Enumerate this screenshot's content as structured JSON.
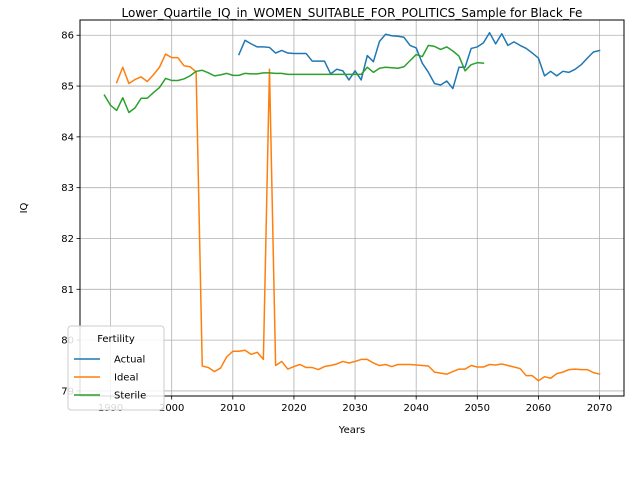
{
  "chart_data": {
    "type": "line",
    "title": "Lower_Quartile_IQ_in_WOMEN_SUITABLE_FOR_POLITICS_Sample for Black_Fe",
    "xlabel": "Years",
    "ylabel": "IQ",
    "xlim": [
      1985,
      2074
    ],
    "ylim": [
      78.9,
      86.3
    ],
    "xticks": [
      1990,
      2000,
      2010,
      2020,
      2030,
      2040,
      2050,
      2060,
      2070
    ],
    "yticks": [
      79,
      80,
      81,
      82,
      83,
      84,
      85,
      86
    ],
    "grid": true,
    "legend": {
      "title": "Fertility",
      "placement": "lower-left"
    },
    "series": [
      {
        "name": "Actual",
        "color": "#1f77b4",
        "x": [
          2011,
          2012,
          2013,
          2014,
          2015,
          2016,
          2017,
          2018,
          2019,
          2020,
          2021,
          2022,
          2023,
          2024,
          2025,
          2026,
          2027,
          2028,
          2029,
          2030,
          2031,
          2032,
          2033,
          2034,
          2035,
          2036,
          2037,
          2038,
          2039,
          2040,
          2041,
          2042,
          2043,
          2044,
          2045,
          2046,
          2047,
          2048,
          2049,
          2050,
          2051,
          2052,
          2053,
          2054,
          2055,
          2056,
          2057,
          2058,
          2059,
          2060,
          2061,
          2062,
          2063,
          2064,
          2065,
          2066,
          2067,
          2068,
          2069,
          2070
        ],
        "y": [
          85.62,
          85.9,
          85.83,
          85.77,
          85.77,
          85.76,
          85.65,
          85.7,
          85.65,
          85.64,
          85.64,
          85.64,
          85.49,
          85.49,
          85.49,
          85.24,
          85.33,
          85.3,
          85.12,
          85.3,
          85.12,
          85.6,
          85.48,
          85.88,
          86.02,
          85.99,
          85.98,
          85.96,
          85.8,
          85.75,
          85.45,
          85.27,
          85.05,
          85.02,
          85.1,
          84.95,
          85.37,
          85.37,
          85.74,
          85.77,
          85.85,
          86.05,
          85.83,
          86.03,
          85.8,
          85.87,
          85.8,
          85.74,
          85.65,
          85.55,
          85.2,
          85.29,
          85.2,
          85.29,
          85.27,
          85.33,
          85.42,
          85.55,
          85.67,
          85.7
        ]
      },
      {
        "name": "Ideal",
        "color": "#ff7f0e",
        "x": [
          1991,
          1992,
          1993,
          1994,
          1995,
          1996,
          1997,
          1998,
          1999,
          2000,
          2001,
          2002,
          2003,
          2004,
          2005,
          2006,
          2007,
          2008,
          2009,
          2010,
          2011,
          2012,
          2013,
          2014,
          2015,
          2016,
          2017,
          2018,
          2019,
          2020,
          2021,
          2022,
          2023,
          2024,
          2025,
          2026,
          2027,
          2028,
          2029,
          2030,
          2031,
          2032,
          2033,
          2034,
          2035,
          2036,
          2037,
          2038,
          2039,
          2040,
          2041,
          2042,
          2043,
          2044,
          2045,
          2046,
          2047,
          2048,
          2049,
          2050,
          2051,
          2052,
          2053,
          2054,
          2055,
          2056,
          2057,
          2058,
          2059,
          2060,
          2061,
          2062,
          2063,
          2064,
          2065,
          2066,
          2067,
          2068,
          2069,
          2070
        ],
        "y": [
          85.07,
          85.37,
          85.05,
          85.13,
          85.18,
          85.09,
          85.22,
          85.37,
          85.63,
          85.56,
          85.56,
          85.4,
          85.38,
          85.28,
          79.49,
          79.46,
          79.38,
          79.45,
          79.67,
          79.78,
          79.78,
          79.8,
          79.72,
          79.76,
          79.62,
          85.33,
          79.5,
          79.58,
          79.43,
          79.48,
          79.52,
          79.46,
          79.46,
          79.42,
          79.48,
          79.5,
          79.53,
          79.58,
          79.55,
          79.58,
          79.62,
          79.62,
          79.55,
          79.5,
          79.52,
          79.48,
          79.52,
          79.52,
          79.52,
          79.51,
          79.5,
          79.49,
          79.37,
          79.35,
          79.33,
          79.38,
          79.43,
          79.43,
          79.5,
          79.47,
          79.47,
          79.52,
          79.51,
          79.53,
          79.5,
          79.47,
          79.44,
          79.3,
          79.3,
          79.2,
          79.28,
          79.25,
          79.34,
          79.37,
          79.42,
          79.43,
          79.42,
          79.42,
          79.36,
          79.33
        ]
      },
      {
        "name": "Sterile",
        "color": "#2ca02c",
        "x": [
          1989,
          1990,
          1991,
          1992,
          1993,
          1994,
          1995,
          1996,
          1997,
          1998,
          1999,
          2000,
          2001,
          2002,
          2003,
          2004,
          2005,
          2006,
          2007,
          2008,
          2009,
          2010,
          2011,
          2012,
          2013,
          2014,
          2015,
          2016,
          2017,
          2018,
          2019,
          2020,
          2021,
          2022,
          2023,
          2024,
          2025,
          2026,
          2027,
          2028,
          2029,
          2030,
          2031,
          2032,
          2033,
          2034,
          2035,
          2036,
          2037,
          2038,
          2039,
          2040,
          2041,
          2042,
          2043,
          2044,
          2045,
          2046,
          2047,
          2048,
          2049,
          2050,
          2051
        ],
        "y": [
          84.82,
          84.62,
          84.52,
          84.77,
          84.48,
          84.57,
          84.76,
          84.76,
          84.87,
          84.97,
          85.15,
          85.11,
          85.11,
          85.14,
          85.2,
          85.29,
          85.31,
          85.26,
          85.2,
          85.22,
          85.25,
          85.21,
          85.21,
          85.25,
          85.24,
          85.24,
          85.26,
          85.26,
          85.25,
          85.25,
          85.23,
          85.23,
          85.23,
          85.23,
          85.23,
          85.23,
          85.23,
          85.23,
          85.23,
          85.23,
          85.23,
          85.23,
          85.23,
          85.37,
          85.27,
          85.35,
          85.37,
          85.36,
          85.35,
          85.38,
          85.5,
          85.62,
          85.58,
          85.8,
          85.78,
          85.72,
          85.77,
          85.69,
          85.59,
          85.3,
          85.42,
          85.46,
          85.45
        ]
      }
    ]
  }
}
